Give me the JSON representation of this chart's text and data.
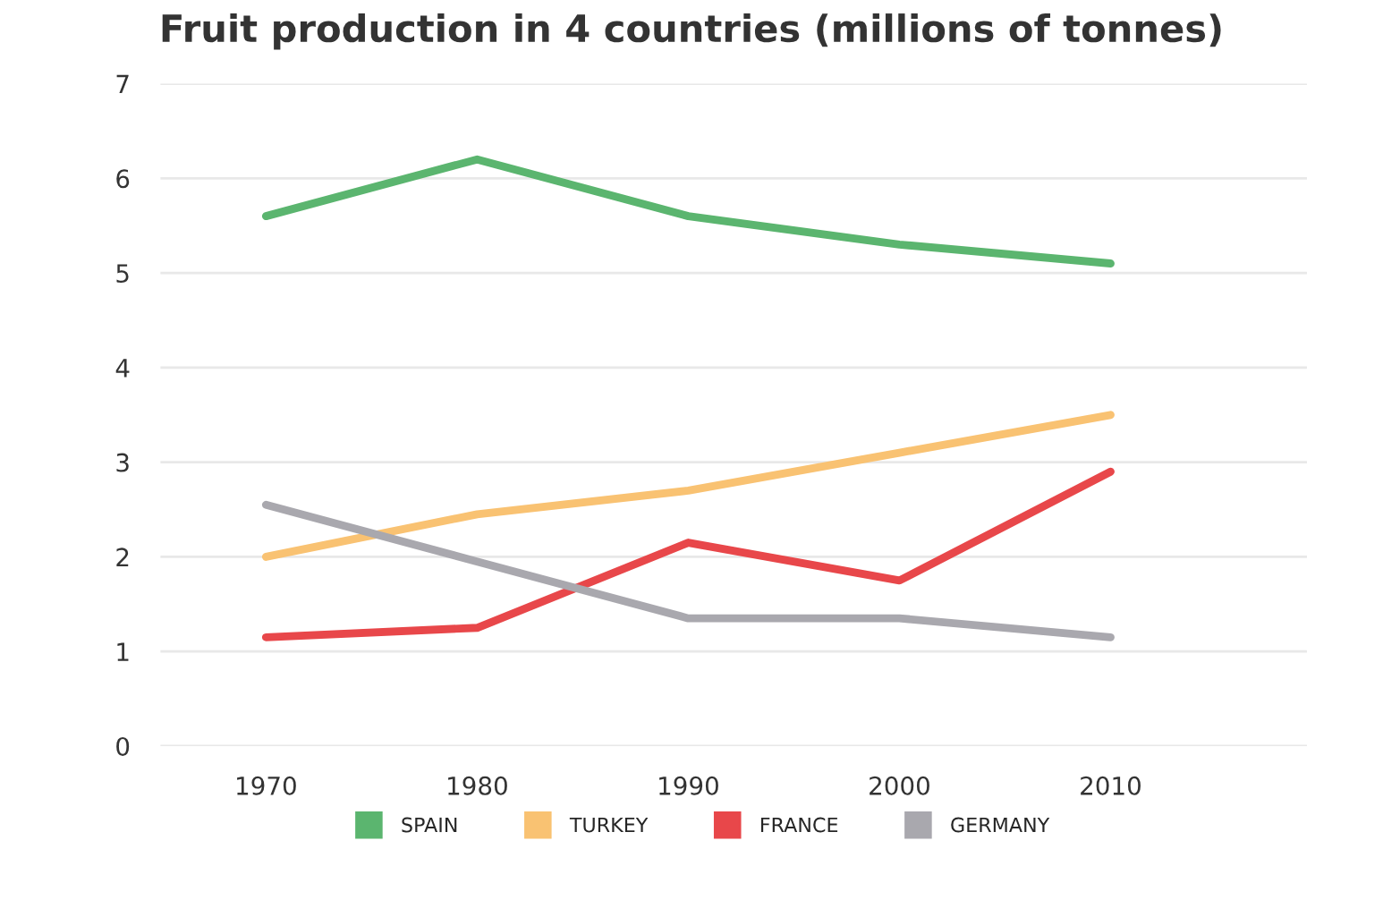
{
  "chart_data": {
    "type": "line",
    "title": "Fruit production in 4 countries (millions of tonnes)",
    "categories": [
      "1970",
      "1980",
      "1990",
      "2000",
      "2010"
    ],
    "series": [
      {
        "name": "SPAIN",
        "color": "#5bb56f",
        "values": [
          5.6,
          6.2,
          5.6,
          5.3,
          5.1
        ]
      },
      {
        "name": "TURKEY",
        "color": "#f9c272",
        "values": [
          2.0,
          2.45,
          2.7,
          3.1,
          3.5
        ]
      },
      {
        "name": "FRANCE",
        "color": "#e8474a",
        "values": [
          1.15,
          1.25,
          2.15,
          1.75,
          2.9
        ]
      },
      {
        "name": "GERMANY",
        "color": "#a9a8ae",
        "values": [
          2.55,
          1.95,
          1.35,
          1.35,
          1.15
        ]
      }
    ],
    "ylim": [
      0,
      7
    ],
    "yticks": [
      0,
      1,
      2,
      3,
      4,
      5,
      6,
      7
    ],
    "grid": "y",
    "legend": "bottom",
    "marker": "none",
    "line_style": "solid"
  }
}
